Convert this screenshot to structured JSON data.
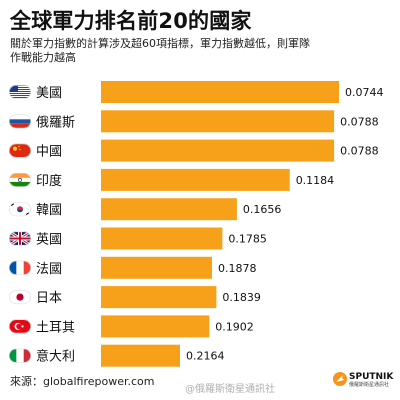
{
  "title": "全球軍力排名前20的國家",
  "subtitle": "關於軍力指數的計算涉及超60項指標，軍力指數越低，則軍隊作戰能力越高",
  "source": "來源：globalfirepower.com",
  "watermark": "@俄羅斯衛星通訊社",
  "logo": {
    "name": "SPUTNIK",
    "sub": "俄羅斯衛星通訊社"
  },
  "colors": {
    "bar": "#f7a11a",
    "accent": "#f7941d"
  },
  "chart_data": {
    "type": "bar",
    "orientation": "horizontal",
    "title": "全球軍力排名前20的國家",
    "categories": [
      "美國",
      "俄羅斯",
      "中國",
      "印度",
      "韓國",
      "英國",
      "法國",
      "日本",
      "土耳其",
      "意大利"
    ],
    "values": [
      0.0744,
      0.0788,
      0.0788,
      0.1184,
      0.1656,
      0.1785,
      0.1878,
      0.1839,
      0.1902,
      0.2164
    ],
    "value_labels": [
      "0.0744",
      "0.0788",
      "0.0788",
      "0.1184",
      "0.1656",
      "0.1785",
      "0.1878",
      "0.1839",
      "0.1902",
      "0.2164"
    ],
    "flags": [
      "usa-flag-icon",
      "russia-flag-icon",
      "china-flag-icon",
      "india-flag-icon",
      "south-korea-flag-icon",
      "uk-flag-icon",
      "france-flag-icon",
      "japan-flag-icon",
      "turkey-flag-icon",
      "italy-flag-icon"
    ],
    "note": "lower value = stronger military; bar length is inversely related to value",
    "grid": false,
    "legend": "none"
  }
}
